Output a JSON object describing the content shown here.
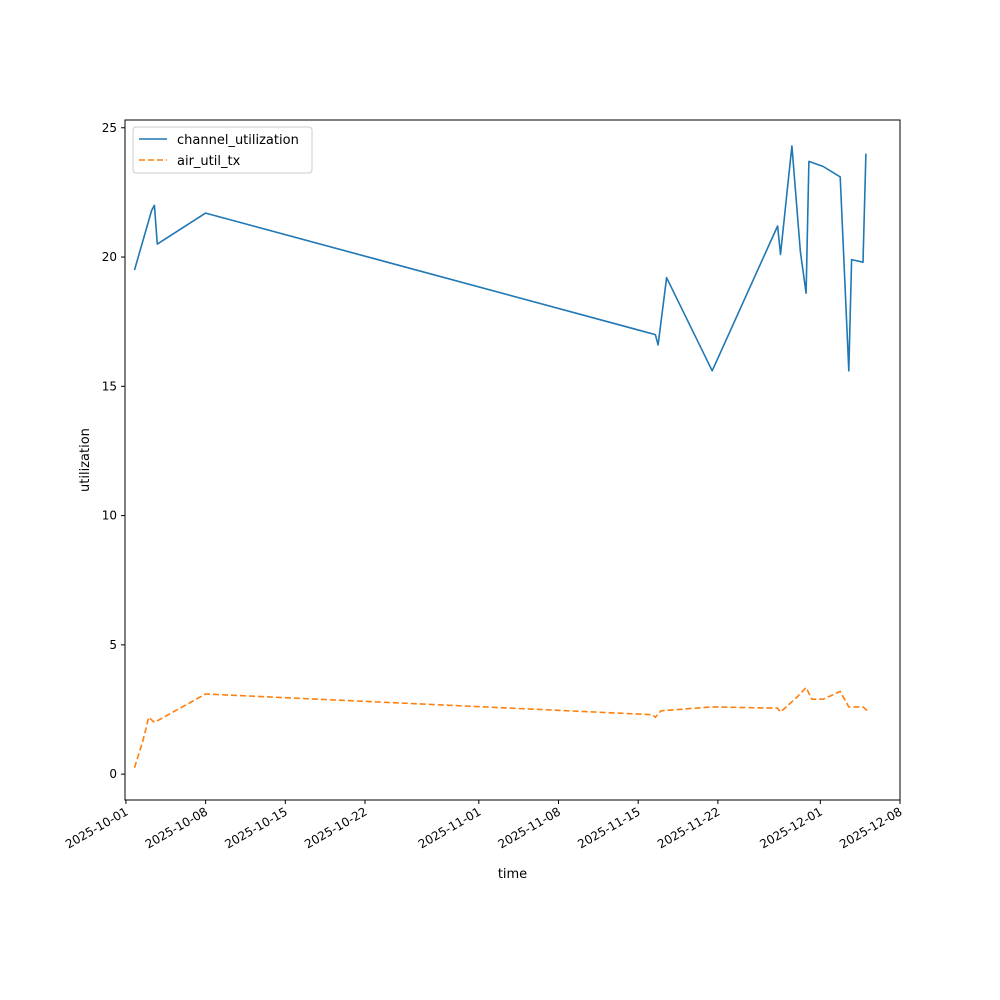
{
  "chart_data": {
    "type": "line",
    "title": "",
    "xlabel": "time",
    "ylabel": "utilization",
    "x_axis_type": "date",
    "xlim": [
      "2025-09-30T22:00",
      "2025-12-08T00:00"
    ],
    "ylim": [
      -1,
      25.3
    ],
    "x_ticks": [
      "2025-10-01",
      "2025-10-08",
      "2025-10-15",
      "2025-10-22",
      "2025-11-01",
      "2025-11-08",
      "2025-11-15",
      "2025-11-22",
      "2025-12-01",
      "2025-12-08"
    ],
    "y_ticks": [
      0,
      5,
      10,
      15,
      20,
      25
    ],
    "grid": false,
    "legend_position": "top-left",
    "series": [
      {
        "name": "channel_utilization",
        "color": "#1f77b4",
        "style": "solid",
        "points": [
          [
            "2025-10-01T18:00",
            19.5
          ],
          [
            "2025-10-03T06:00",
            21.8
          ],
          [
            "2025-10-03T12:00",
            22.0
          ],
          [
            "2025-10-03T18:00",
            20.5
          ],
          [
            "2025-10-08T00:00",
            21.7
          ],
          [
            "2025-11-16T12:00",
            17.0
          ],
          [
            "2025-11-16T18:00",
            16.6
          ],
          [
            "2025-11-17T12:00",
            19.2
          ],
          [
            "2025-11-21T12:00",
            15.6
          ],
          [
            "2025-11-27T06:00",
            21.2
          ],
          [
            "2025-11-27T12:00",
            20.1
          ],
          [
            "2025-11-28T12:00",
            24.3
          ],
          [
            "2025-11-29T06:00",
            20.2
          ],
          [
            "2025-11-29T18:00",
            18.6
          ],
          [
            "2025-11-30T00:00",
            23.7
          ],
          [
            "2025-12-01T06:00",
            23.5
          ],
          [
            "2025-12-02T18:00",
            23.1
          ],
          [
            "2025-12-03T12:00",
            15.6
          ],
          [
            "2025-12-03T18:00",
            19.9
          ],
          [
            "2025-12-04T18:00",
            19.8
          ],
          [
            "2025-12-05T00:00",
            24.0
          ]
        ]
      },
      {
        "name": "air_util_tx",
        "color": "#ff7f0e",
        "style": "dashed",
        "points": [
          [
            "2025-10-01T18:00",
            0.25
          ],
          [
            "2025-10-02T12:00",
            1.3
          ],
          [
            "2025-10-03T00:00",
            2.2
          ],
          [
            "2025-10-03T12:00",
            2.0
          ],
          [
            "2025-10-08T00:00",
            3.1
          ],
          [
            "2025-11-16T06:00",
            2.3
          ],
          [
            "2025-11-16T12:00",
            2.2
          ],
          [
            "2025-11-17T00:00",
            2.45
          ],
          [
            "2025-11-21T12:00",
            2.6
          ],
          [
            "2025-11-27T06:00",
            2.55
          ],
          [
            "2025-11-27T12:00",
            2.4
          ],
          [
            "2025-11-29T00:00",
            3.0
          ],
          [
            "2025-11-29T18:00",
            3.35
          ],
          [
            "2025-11-30T06:00",
            2.9
          ],
          [
            "2025-12-01T06:00",
            2.9
          ],
          [
            "2025-12-02T18:00",
            3.2
          ],
          [
            "2025-12-03T12:00",
            2.6
          ],
          [
            "2025-12-04T18:00",
            2.6
          ],
          [
            "2025-12-05T06:00",
            2.4
          ]
        ]
      }
    ]
  }
}
